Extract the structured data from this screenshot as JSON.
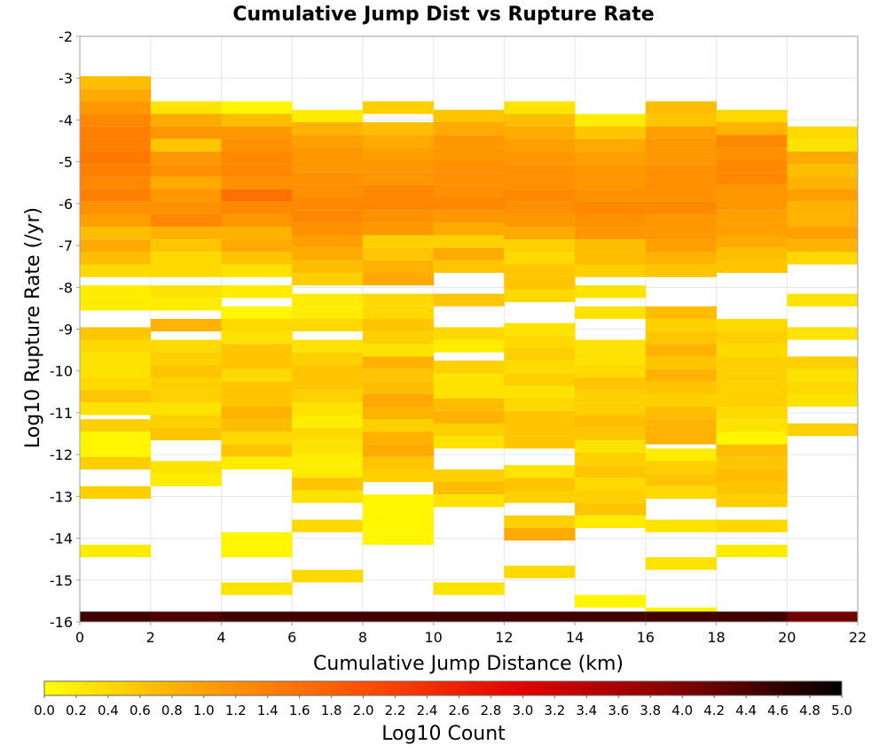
{
  "chart_data": {
    "type": "heatmap",
    "title": "Cumulative Jump Dist vs Rupture Rate",
    "xlabel": "Cumulative Jump Distance (km)",
    "ylabel": "Log10 Rupture Rate (/yr)",
    "colorbar_label": "Log10 Count",
    "xlim": [
      0,
      22
    ],
    "ylim": [
      -16,
      -2
    ],
    "x_ticks": [
      "0",
      "2",
      "4",
      "6",
      "8",
      "10",
      "12",
      "14",
      "16",
      "18",
      "20",
      "22"
    ],
    "y_ticks": [
      "-2",
      "-3",
      "-4",
      "-5",
      "-6",
      "-7",
      "-8",
      "-9",
      "-10",
      "-11",
      "-12",
      "-13",
      "-14",
      "-15",
      "-16"
    ],
    "colorbar_range": [
      0,
      5
    ],
    "colorbar_ticks": [
      "0.0",
      "0.2",
      "0.4",
      "0.6",
      "0.8",
      "1.0",
      "1.2",
      "1.4",
      "1.6",
      "1.8",
      "2.0",
      "2.2",
      "2.4",
      "2.6",
      "2.8",
      "3.0",
      "3.2",
      "3.4",
      "3.6",
      "3.8",
      "4.0",
      "4.2",
      "4.4",
      "4.6",
      "4.8",
      "5.0"
    ],
    "colormap": [
      "#ffff00",
      "#ffa000",
      "#ff5000",
      "#e00000",
      "#800000",
      "#000000"
    ],
    "grid": true,
    "x_bin_width": 2,
    "y_bin_height": 0.29,
    "cells": [
      [
        1,
        -3.1,
        0.7
      ],
      [
        1,
        -3.4,
        0.9
      ],
      [
        1,
        -3.7,
        1.1
      ],
      [
        1,
        -4.0,
        1.3
      ],
      [
        1,
        -4.3,
        1.4
      ],
      [
        1,
        -4.6,
        1.4
      ],
      [
        1,
        -4.9,
        1.5
      ],
      [
        1,
        -5.2,
        1.4
      ],
      [
        1,
        -5.5,
        1.3
      ],
      [
        1,
        -5.8,
        1.4
      ],
      [
        1,
        -6.1,
        1.2
      ],
      [
        1,
        -6.4,
        1.0
      ],
      [
        1,
        -6.7,
        0.7
      ],
      [
        1,
        -7.0,
        0.9
      ],
      [
        1,
        -7.3,
        0.7
      ],
      [
        1,
        -7.6,
        0.4
      ],
      [
        1,
        -8.1,
        0.2
      ],
      [
        1,
        -8.4,
        0.2
      ],
      [
        1,
        -9.1,
        0.6
      ],
      [
        1,
        -9.4,
        0.4
      ],
      [
        1,
        -9.7,
        0.3
      ],
      [
        1,
        -10.0,
        0.3
      ],
      [
        1,
        -10.3,
        0.4
      ],
      [
        1,
        -10.6,
        0.6
      ],
      [
        1,
        -10.9,
        0.3
      ],
      [
        1,
        -11.3,
        0.5
      ],
      [
        1,
        -11.6,
        0.1
      ],
      [
        1,
        -11.9,
        0.1
      ],
      [
        1,
        -12.2,
        0.5
      ],
      [
        1,
        -12.9,
        0.5
      ],
      [
        1,
        -14.3,
        0.2
      ],
      [
        1,
        -15.9,
        4.5
      ],
      [
        3,
        -3.7,
        0.3
      ],
      [
        3,
        -4.0,
        0.9
      ],
      [
        3,
        -4.3,
        1.1
      ],
      [
        3,
        -4.6,
        0.6
      ],
      [
        3,
        -4.9,
        1.1
      ],
      [
        3,
        -5.2,
        1.2
      ],
      [
        3,
        -5.5,
        0.9
      ],
      [
        3,
        -5.8,
        1.1
      ],
      [
        3,
        -6.1,
        1.2
      ],
      [
        3,
        -6.4,
        1.3
      ],
      [
        3,
        -6.7,
        0.8
      ],
      [
        3,
        -7.0,
        0.6
      ],
      [
        3,
        -7.3,
        0.4
      ],
      [
        3,
        -7.6,
        0.4
      ],
      [
        3,
        -8.1,
        0.3
      ],
      [
        3,
        -8.4,
        0.2
      ],
      [
        3,
        -8.9,
        0.8
      ],
      [
        3,
        -9.4,
        0.4
      ],
      [
        3,
        -9.7,
        0.5
      ],
      [
        3,
        -10.0,
        0.6
      ],
      [
        3,
        -10.3,
        0.5
      ],
      [
        3,
        -10.6,
        0.5
      ],
      [
        3,
        -10.9,
        0.3
      ],
      [
        3,
        -11.2,
        0.5
      ],
      [
        3,
        -11.5,
        0.6
      ],
      [
        3,
        -12.3,
        0.3
      ],
      [
        3,
        -12.6,
        0.2
      ],
      [
        3,
        -15.9,
        4.4
      ],
      [
        5,
        -3.7,
        0.1
      ],
      [
        5,
        -4.0,
        0.7
      ],
      [
        5,
        -4.3,
        1.1
      ],
      [
        5,
        -4.6,
        1.2
      ],
      [
        5,
        -4.9,
        1.3
      ],
      [
        5,
        -5.2,
        1.3
      ],
      [
        5,
        -5.5,
        1.2
      ],
      [
        5,
        -5.8,
        1.6
      ],
      [
        5,
        -6.1,
        1.3
      ],
      [
        5,
        -6.4,
        1.1
      ],
      [
        5,
        -6.7,
        0.8
      ],
      [
        5,
        -7.0,
        0.9
      ],
      [
        5,
        -7.3,
        0.6
      ],
      [
        5,
        -7.6,
        0.3
      ],
      [
        5,
        -8.1,
        0.2
      ],
      [
        5,
        -8.6,
        0.1
      ],
      [
        5,
        -8.9,
        0.4
      ],
      [
        5,
        -9.2,
        0.3
      ],
      [
        5,
        -9.5,
        0.6
      ],
      [
        5,
        -9.8,
        0.6
      ],
      [
        5,
        -10.1,
        0.4
      ],
      [
        5,
        -10.4,
        0.6
      ],
      [
        5,
        -10.7,
        0.6
      ],
      [
        5,
        -11.0,
        0.8
      ],
      [
        5,
        -11.3,
        0.7
      ],
      [
        5,
        -11.6,
        0.4
      ],
      [
        5,
        -11.9,
        0.6
      ],
      [
        5,
        -12.2,
        0.2
      ],
      [
        5,
        -14.0,
        0.1
      ],
      [
        5,
        -14.3,
        0.1
      ],
      [
        5,
        -15.2,
        0.3
      ],
      [
        5,
        -15.9,
        4.5
      ],
      [
        7,
        -3.9,
        0.2
      ],
      [
        7,
        -4.2,
        0.8
      ],
      [
        7,
        -4.5,
        1.0
      ],
      [
        7,
        -4.8,
        1.1
      ],
      [
        7,
        -5.1,
        1.1
      ],
      [
        7,
        -5.4,
        1.2
      ],
      [
        7,
        -5.7,
        1.2
      ],
      [
        7,
        -6.0,
        1.3
      ],
      [
        7,
        -6.3,
        1.3
      ],
      [
        7,
        -6.6,
        1.2
      ],
      [
        7,
        -6.9,
        1.0
      ],
      [
        7,
        -7.2,
        0.9
      ],
      [
        7,
        -7.5,
        0.7
      ],
      [
        7,
        -7.8,
        0.5
      ],
      [
        7,
        -8.3,
        0.2
      ],
      [
        7,
        -8.6,
        0.2
      ],
      [
        7,
        -8.9,
        0.4
      ],
      [
        7,
        -9.4,
        0.3
      ],
      [
        7,
        -9.7,
        0.5
      ],
      [
        7,
        -10.0,
        0.6
      ],
      [
        7,
        -10.3,
        0.6
      ],
      [
        7,
        -10.6,
        0.5
      ],
      [
        7,
        -10.9,
        0.3
      ],
      [
        7,
        -11.2,
        0.2
      ],
      [
        7,
        -11.5,
        0.4
      ],
      [
        7,
        -11.8,
        0.3
      ],
      [
        7,
        -12.1,
        0.2
      ],
      [
        7,
        -12.4,
        0.2
      ],
      [
        7,
        -12.7,
        0.6
      ],
      [
        7,
        -13.0,
        0.3
      ],
      [
        7,
        -13.7,
        0.4
      ],
      [
        7,
        -14.9,
        0.4
      ],
      [
        7,
        -15.9,
        4.5
      ],
      [
        9,
        -3.7,
        0.5
      ],
      [
        9,
        -4.2,
        0.7
      ],
      [
        9,
        -4.5,
        0.9
      ],
      [
        9,
        -4.8,
        1.0
      ],
      [
        9,
        -5.1,
        1.1
      ],
      [
        9,
        -5.4,
        1.1
      ],
      [
        9,
        -5.7,
        1.3
      ],
      [
        9,
        -6.0,
        1.3
      ],
      [
        9,
        -6.3,
        1.2
      ],
      [
        9,
        -6.6,
        1.1
      ],
      [
        9,
        -6.9,
        0.5
      ],
      [
        9,
        -7.2,
        0.6
      ],
      [
        9,
        -7.5,
        0.8
      ],
      [
        9,
        -7.8,
        0.9
      ],
      [
        9,
        -8.3,
        0.4
      ],
      [
        9,
        -8.6,
        0.4
      ],
      [
        9,
        -8.9,
        0.6
      ],
      [
        9,
        -9.2,
        0.5
      ],
      [
        9,
        -9.5,
        0.3
      ],
      [
        9,
        -9.8,
        0.8
      ],
      [
        9,
        -10.1,
        0.6
      ],
      [
        9,
        -10.4,
        0.7
      ],
      [
        9,
        -10.7,
        0.9
      ],
      [
        9,
        -11.0,
        0.8
      ],
      [
        9,
        -11.3,
        0.5
      ],
      [
        9,
        -11.6,
        0.8
      ],
      [
        9,
        -11.9,
        0.9
      ],
      [
        9,
        -12.2,
        0.6
      ],
      [
        9,
        -12.5,
        0.5
      ],
      [
        9,
        -13.1,
        0.1
      ],
      [
        9,
        -13.4,
        0.1
      ],
      [
        9,
        -13.7,
        0.1
      ],
      [
        9,
        -14.0,
        0.1
      ],
      [
        9,
        -15.9,
        4.5
      ],
      [
        11,
        -3.9,
        0.6
      ],
      [
        11,
        -4.2,
        0.9
      ],
      [
        11,
        -4.5,
        1.1
      ],
      [
        11,
        -4.8,
        1.1
      ],
      [
        11,
        -5.1,
        1.2
      ],
      [
        11,
        -5.4,
        1.2
      ],
      [
        11,
        -5.7,
        1.2
      ],
      [
        11,
        -6.0,
        1.3
      ],
      [
        11,
        -6.3,
        1.1
      ],
      [
        11,
        -6.6,
        0.9
      ],
      [
        11,
        -6.9,
        0.5
      ],
      [
        11,
        -7.2,
        0.9
      ],
      [
        11,
        -7.5,
        0.6
      ],
      [
        11,
        -8.3,
        0.6
      ],
      [
        11,
        -9.1,
        0.4
      ],
      [
        11,
        -9.4,
        0.2
      ],
      [
        11,
        -9.9,
        0.5
      ],
      [
        11,
        -10.2,
        0.3
      ],
      [
        11,
        -10.5,
        0.3
      ],
      [
        11,
        -10.8,
        0.7
      ],
      [
        11,
        -11.1,
        0.8
      ],
      [
        11,
        -11.4,
        0.5
      ],
      [
        11,
        -11.7,
        0.3
      ],
      [
        11,
        -12.5,
        0.5
      ],
      [
        11,
        -12.8,
        0.7
      ],
      [
        11,
        -13.1,
        0.3
      ],
      [
        11,
        -15.2,
        0.3
      ],
      [
        11,
        -15.9,
        4.5
      ],
      [
        13,
        -3.7,
        0.3
      ],
      [
        13,
        -4.0,
        0.7
      ],
      [
        13,
        -4.3,
        0.9
      ],
      [
        13,
        -4.6,
        1.0
      ],
      [
        13,
        -4.9,
        1.1
      ],
      [
        13,
        -5.2,
        1.2
      ],
      [
        13,
        -5.5,
        1.2
      ],
      [
        13,
        -5.8,
        1.3
      ],
      [
        13,
        -6.1,
        1.2
      ],
      [
        13,
        -6.4,
        1.1
      ],
      [
        13,
        -6.7,
        0.9
      ],
      [
        13,
        -7.0,
        0.5
      ],
      [
        13,
        -7.3,
        0.4
      ],
      [
        13,
        -7.6,
        0.6
      ],
      [
        13,
        -7.9,
        0.6
      ],
      [
        13,
        -8.2,
        0.4
      ],
      [
        13,
        -9.0,
        0.3
      ],
      [
        13,
        -9.3,
        0.4
      ],
      [
        13,
        -9.6,
        0.5
      ],
      [
        13,
        -9.9,
        0.4
      ],
      [
        13,
        -10.2,
        0.5
      ],
      [
        13,
        -10.5,
        0.3
      ],
      [
        13,
        -10.8,
        0.4
      ],
      [
        13,
        -11.1,
        0.6
      ],
      [
        13,
        -11.4,
        0.6
      ],
      [
        13,
        -11.7,
        0.6
      ],
      [
        13,
        -12.4,
        0.3
      ],
      [
        13,
        -12.7,
        0.6
      ],
      [
        13,
        -13.0,
        0.5
      ],
      [
        13,
        -13.6,
        0.5
      ],
      [
        13,
        -13.9,
        0.9
      ],
      [
        13,
        -14.8,
        0.4
      ],
      [
        13,
        -15.9,
        4.5
      ],
      [
        15,
        -4.0,
        0.2
      ],
      [
        15,
        -4.3,
        0.6
      ],
      [
        15,
        -4.6,
        0.9
      ],
      [
        15,
        -4.9,
        1.0
      ],
      [
        15,
        -5.2,
        1.1
      ],
      [
        15,
        -5.5,
        1.1
      ],
      [
        15,
        -5.8,
        1.2
      ],
      [
        15,
        -6.1,
        1.3
      ],
      [
        15,
        -6.4,
        1.2
      ],
      [
        15,
        -6.7,
        1.1
      ],
      [
        15,
        -7.0,
        0.7
      ],
      [
        15,
        -7.3,
        0.7
      ],
      [
        15,
        -7.6,
        0.5
      ],
      [
        15,
        -8.1,
        0.3
      ],
      [
        15,
        -8.6,
        0.3
      ],
      [
        15,
        -9.4,
        0.3
      ],
      [
        15,
        -9.7,
        0.3
      ],
      [
        15,
        -10.0,
        0.4
      ],
      [
        15,
        -10.3,
        0.6
      ],
      [
        15,
        -10.6,
        0.5
      ],
      [
        15,
        -10.9,
        0.5
      ],
      [
        15,
        -11.2,
        0.7
      ],
      [
        15,
        -11.5,
        0.6
      ],
      [
        15,
        -11.8,
        0.3
      ],
      [
        15,
        -12.1,
        0.5
      ],
      [
        15,
        -12.4,
        0.6
      ],
      [
        15,
        -12.7,
        0.4
      ],
      [
        15,
        -13.0,
        0.5
      ],
      [
        15,
        -13.3,
        0.6
      ],
      [
        15,
        -13.6,
        0.2
      ],
      [
        15,
        -15.5,
        0.1
      ],
      [
        15,
        -15.9,
        4.5
      ],
      [
        17,
        -3.7,
        0.7
      ],
      [
        17,
        -4.0,
        0.6
      ],
      [
        17,
        -4.3,
        1.0
      ],
      [
        17,
        -4.6,
        1.1
      ],
      [
        17,
        -4.9,
        1.1
      ],
      [
        17,
        -5.2,
        1.2
      ],
      [
        17,
        -5.5,
        1.2
      ],
      [
        17,
        -5.8,
        1.2
      ],
      [
        17,
        -6.1,
        1.3
      ],
      [
        17,
        -6.4,
        1.1
      ],
      [
        17,
        -6.7,
        1.1
      ],
      [
        17,
        -7.0,
        1.0
      ],
      [
        17,
        -7.3,
        0.8
      ],
      [
        17,
        -7.6,
        0.6
      ],
      [
        17,
        -8.6,
        0.7
      ],
      [
        17,
        -8.9,
        0.5
      ],
      [
        17,
        -9.2,
        0.6
      ],
      [
        17,
        -9.5,
        0.8
      ],
      [
        17,
        -9.8,
        0.6
      ],
      [
        17,
        -10.1,
        0.8
      ],
      [
        17,
        -10.4,
        0.6
      ],
      [
        17,
        -10.7,
        0.5
      ],
      [
        17,
        -11.0,
        0.7
      ],
      [
        17,
        -11.3,
        0.8
      ],
      [
        17,
        -11.6,
        0.8
      ],
      [
        17,
        -12.0,
        0.2
      ],
      [
        17,
        -12.3,
        0.5
      ],
      [
        17,
        -12.6,
        0.6
      ],
      [
        17,
        -12.9,
        0.4
      ],
      [
        17,
        -13.7,
        0.3
      ],
      [
        17,
        -14.6,
        0.3
      ],
      [
        17,
        -15.8,
        0.1
      ],
      [
        17,
        -15.9,
        4.5
      ],
      [
        19,
        -3.9,
        0.4
      ],
      [
        19,
        -4.2,
        0.8
      ],
      [
        19,
        -4.5,
        1.3
      ],
      [
        19,
        -4.8,
        1.2
      ],
      [
        19,
        -5.1,
        1.3
      ],
      [
        19,
        -5.4,
        1.3
      ],
      [
        19,
        -5.7,
        1.1
      ],
      [
        19,
        -6.0,
        1.1
      ],
      [
        19,
        -6.3,
        1.0
      ],
      [
        19,
        -6.6,
        1.0
      ],
      [
        19,
        -6.9,
        0.9
      ],
      [
        19,
        -7.2,
        0.7
      ],
      [
        19,
        -7.5,
        0.6
      ],
      [
        19,
        -8.9,
        0.4
      ],
      [
        19,
        -9.2,
        0.5
      ],
      [
        19,
        -9.5,
        0.4
      ],
      [
        19,
        -9.8,
        0.5
      ],
      [
        19,
        -10.1,
        0.5
      ],
      [
        19,
        -10.4,
        0.5
      ],
      [
        19,
        -10.7,
        0.5
      ],
      [
        19,
        -11.0,
        0.4
      ],
      [
        19,
        -11.3,
        0.3
      ],
      [
        19,
        -11.6,
        0.1
      ],
      [
        19,
        -11.9,
        0.7
      ],
      [
        19,
        -12.2,
        0.6
      ],
      [
        19,
        -12.5,
        0.7
      ],
      [
        19,
        -12.8,
        0.6
      ],
      [
        19,
        -13.1,
        0.5
      ],
      [
        19,
        -13.7,
        0.4
      ],
      [
        19,
        -14.3,
        0.2
      ],
      [
        19,
        -15.9,
        4.5
      ],
      [
        21,
        -4.3,
        0.4
      ],
      [
        21,
        -4.6,
        0.3
      ],
      [
        21,
        -4.9,
        0.9
      ],
      [
        21,
        -5.2,
        0.7
      ],
      [
        21,
        -5.5,
        0.8
      ],
      [
        21,
        -5.8,
        1.0
      ],
      [
        21,
        -6.1,
        0.8
      ],
      [
        21,
        -6.4,
        0.8
      ],
      [
        21,
        -6.7,
        1.0
      ],
      [
        21,
        -7.0,
        0.8
      ],
      [
        21,
        -7.3,
        0.4
      ],
      [
        21,
        -8.3,
        0.3
      ],
      [
        21,
        -9.1,
        0.3
      ],
      [
        21,
        -9.8,
        0.5
      ],
      [
        21,
        -10.1,
        0.3
      ],
      [
        21,
        -10.4,
        0.4
      ],
      [
        21,
        -10.7,
        0.3
      ],
      [
        21,
        -11.4,
        0.5
      ],
      [
        21,
        -15.9,
        4.1
      ]
    ]
  }
}
